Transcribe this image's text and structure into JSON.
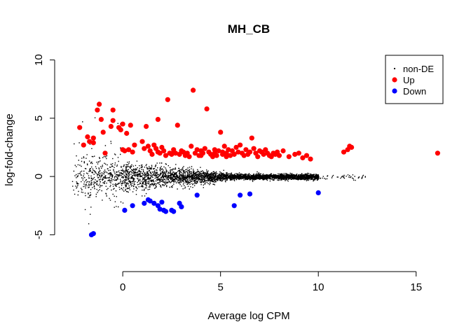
{
  "chart_data": {
    "type": "scatter",
    "title": "MH_CB",
    "xlabel": "Average log CPM",
    "ylabel": "log-fold-change",
    "xlim": [
      -2.8,
      16.3
    ],
    "ylim": [
      -7.2,
      10.4
    ],
    "x_ticks": [
      "0",
      "5",
      "10",
      "15"
    ],
    "y_ticks": [
      "-5",
      "0",
      "5",
      "10"
    ],
    "grid": false,
    "legend_position": "top-right",
    "colors": {
      "non_de": "#000000",
      "up": "#ff0000",
      "down": "#0000ff"
    },
    "legend": [
      {
        "label": "non-DE",
        "color": "#000000",
        "marker": "dot-small"
      },
      {
        "label": "Up",
        "color": "#ff0000",
        "marker": "dot-large"
      },
      {
        "label": "Down",
        "color": "#0000ff",
        "marker": "dot-large"
      }
    ],
    "series": [
      {
        "name": "Up",
        "x": [
          -2.2,
          -2.0,
          -1.8,
          -1.7,
          -1.5,
          -1.5,
          -1.3,
          -1.2,
          -1.1,
          -1.0,
          -0.9,
          -0.6,
          -0.5,
          -0.5,
          -0.2,
          -0.1,
          0.0,
          0.0,
          0.1,
          0.2,
          0.3,
          0.4,
          0.5,
          0.6,
          1.0,
          1.1,
          1.2,
          1.3,
          1.4,
          1.5,
          1.6,
          1.7,
          1.8,
          1.8,
          1.9,
          2.0,
          2.1,
          2.2,
          2.3,
          2.4,
          2.5,
          2.6,
          2.6,
          2.7,
          2.8,
          2.9,
          3.0,
          3.1,
          3.2,
          3.3,
          3.4,
          3.5,
          3.6,
          3.7,
          3.8,
          3.9,
          4.0,
          4.0,
          4.1,
          4.2,
          4.3,
          4.4,
          4.5,
          4.6,
          4.7,
          4.7,
          4.8,
          4.9,
          5.0,
          5.1,
          5.1,
          5.2,
          5.3,
          5.3,
          5.4,
          5.5,
          5.6,
          5.7,
          5.8,
          5.9,
          6.0,
          6.1,
          6.2,
          6.3,
          6.4,
          6.5,
          6.6,
          6.7,
          6.8,
          6.9,
          7.0,
          7.1,
          7.2,
          7.3,
          7.4,
          7.5,
          7.6,
          7.7,
          7.8,
          7.9,
          8.0,
          8.2,
          8.5,
          8.8,
          9.0,
          9.2,
          9.4,
          9.6,
          11.3,
          11.5,
          11.6,
          11.7,
          16.1
        ],
        "y": [
          4.2,
          2.7,
          3.4,
          3.0,
          2.9,
          3.3,
          5.7,
          6.2,
          4.9,
          3.8,
          2.0,
          4.3,
          5.7,
          4.8,
          4.2,
          4.0,
          2.3,
          4.5,
          2.2,
          3.7,
          2.3,
          4.4,
          2.1,
          2.7,
          3.0,
          2.4,
          4.3,
          2.6,
          2.2,
          1.9,
          2.7,
          2.4,
          4.9,
          2.1,
          2.0,
          2.5,
          2.2,
          1.8,
          6.6,
          2.0,
          1.9,
          2.1,
          2.3,
          2.0,
          4.4,
          1.9,
          2.2,
          2.1,
          1.8,
          2.0,
          1.7,
          2.6,
          7.4,
          2.0,
          2.3,
          1.8,
          1.8,
          2.2,
          2.0,
          2.4,
          5.8,
          2.1,
          1.9,
          1.7,
          2.3,
          2.0,
          1.8,
          2.2,
          3.8,
          2.1,
          1.9,
          2.6,
          1.7,
          2.0,
          2.3,
          1.8,
          2.2,
          1.9,
          2.5,
          2.1,
          2.7,
          2.0,
          1.8,
          2.3,
          1.9,
          2.1,
          3.3,
          2.4,
          2.0,
          1.7,
          2.2,
          2.1,
          1.9,
          2.3,
          2.0,
          1.8,
          1.7,
          2.0,
          1.9,
          2.1,
          1.8,
          2.2,
          1.7,
          1.9,
          2.0,
          1.6,
          1.8,
          1.5,
          2.1,
          2.3,
          2.6,
          2.5,
          2.0
        ]
      },
      {
        "name": "Down",
        "x": [
          -1.6,
          -1.5,
          0.1,
          0.5,
          1.1,
          1.3,
          1.4,
          1.6,
          1.8,
          1.9,
          2.0,
          2.1,
          2.2,
          2.5,
          2.6,
          2.9,
          3.0,
          3.8,
          5.7,
          6.0,
          6.5,
          10.0
        ],
        "y": [
          -5.0,
          -4.9,
          -2.9,
          -2.5,
          -2.3,
          -2.0,
          -2.1,
          -2.3,
          -2.5,
          -2.8,
          -2.2,
          -2.9,
          -3.0,
          -2.9,
          -3.0,
          -2.3,
          -2.6,
          -1.6,
          -2.5,
          -1.6,
          -1.5,
          -1.4
        ]
      }
    ]
  }
}
